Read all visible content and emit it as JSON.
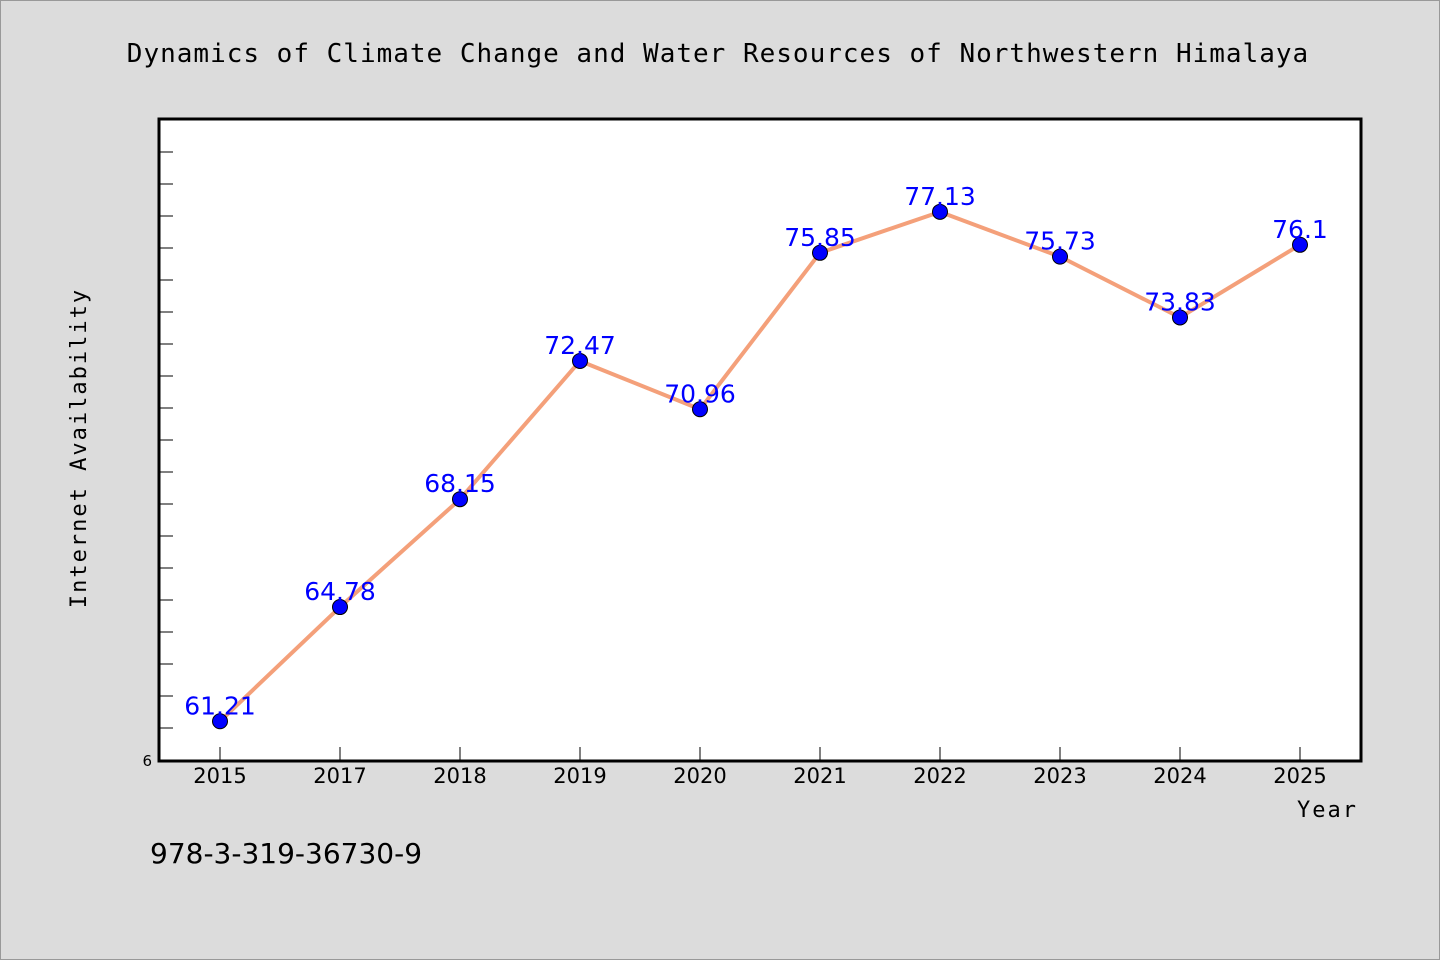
{
  "chart_data": {
    "type": "line",
    "title": "Dynamics of Climate Change and Water Resources of Northwestern Himalaya",
    "xlabel": "Year",
    "ylabel": "Internet Availability",
    "categories": [
      "2015",
      "2017",
      "2018",
      "2019",
      "2020",
      "2021",
      "2022",
      "2023",
      "2024",
      "2025"
    ],
    "series": [
      {
        "values": [
          61.21,
          64.78,
          68.15,
          72.47,
          70.96,
          75.85,
          77.13,
          75.73,
          73.83,
          76.1
        ],
        "data_labels": [
          "61.21",
          "64.78",
          "68.15",
          "72.47",
          "70.96",
          "75.85",
          "77.13",
          "75.73",
          "73.83",
          "76.1"
        ]
      }
    ],
    "y_tick_labels": [
      "6"
    ],
    "ylim": [
      60,
      80
    ],
    "grid": false,
    "legend": "none",
    "colors": {
      "background": "#dcdcdc",
      "plot_background": "#ffffff",
      "line": "#f4a07a",
      "marker": "#0000ff",
      "data_label": "#0000ff"
    }
  },
  "footer": {
    "text": "978-3-319-36730-9"
  }
}
